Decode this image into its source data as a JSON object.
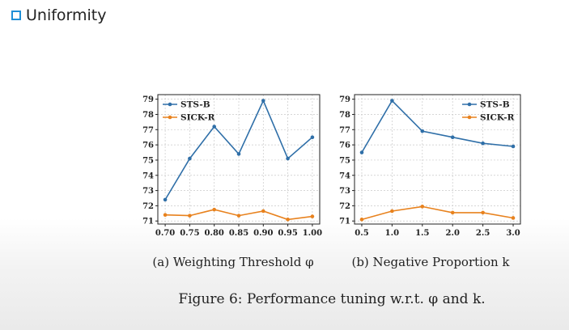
{
  "heading": "Uniformity",
  "colors": {
    "bullet": "#1f8fd6",
    "sts": "#2f6fa8",
    "sick": "#e8821e",
    "grid": "#c9c9c9"
  },
  "chart_data": [
    {
      "type": "line",
      "caption": "(a) Weighting Threshold φ",
      "x": [
        0.7,
        0.75,
        0.8,
        0.85,
        0.9,
        0.95,
        1.0
      ],
      "x_ticks": [
        "0.70",
        "0.75",
        "0.80",
        "0.85",
        "0.90",
        "0.95",
        "1.00"
      ],
      "y_ticks": [
        "71",
        "72",
        "73",
        "74",
        "75",
        "76",
        "77",
        "78",
        "79"
      ],
      "ylim": [
        70.8,
        79.3
      ],
      "xlim": [
        0.685,
        1.015
      ],
      "legend_position": "top-left",
      "grid": true,
      "series": [
        {
          "name": "STS-B",
          "color": "#2f6fa8",
          "values": [
            72.4,
            75.1,
            77.2,
            75.4,
            78.9,
            75.1,
            76.5
          ]
        },
        {
          "name": "SICK-R",
          "color": "#e8821e",
          "values": [
            71.4,
            71.35,
            71.75,
            71.35,
            71.65,
            71.1,
            71.3
          ]
        }
      ]
    },
    {
      "type": "line",
      "caption": "(b) Negative Proportion k",
      "x": [
        0.5,
        1.0,
        1.5,
        2.0,
        2.5,
        3.0
      ],
      "x_ticks": [
        "0.5",
        "1.0",
        "1.5",
        "2.0",
        "2.5",
        "3.0"
      ],
      "y_ticks": [
        "71",
        "72",
        "73",
        "74",
        "75",
        "76",
        "77",
        "78",
        "79"
      ],
      "ylim": [
        70.8,
        79.3
      ],
      "xlim": [
        0.38,
        3.12
      ],
      "legend_position": "top-right",
      "grid": true,
      "series": [
        {
          "name": "STS-B",
          "color": "#2f6fa8",
          "values": [
            75.5,
            78.9,
            76.9,
            76.5,
            76.1,
            75.9
          ]
        },
        {
          "name": "SICK-R",
          "color": "#e8821e",
          "values": [
            71.1,
            71.65,
            71.95,
            71.55,
            71.55,
            71.2
          ]
        }
      ]
    }
  ],
  "figure_caption": "Figure 6: Performance tuning w.r.t. φ and k."
}
